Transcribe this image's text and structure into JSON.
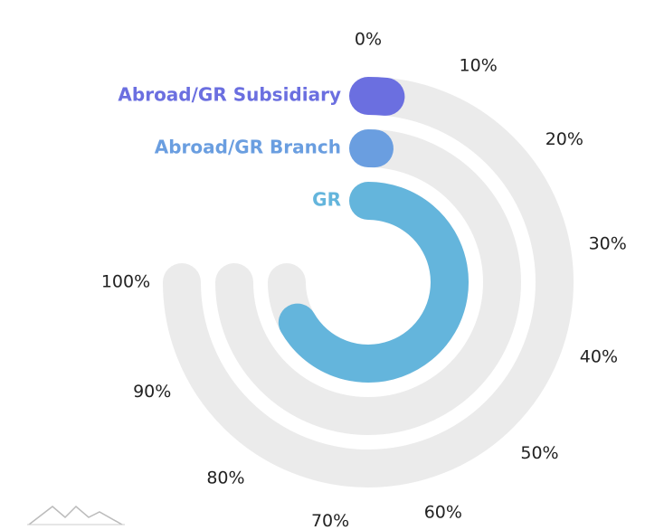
{
  "chart_data": {
    "type": "radialBar",
    "categories": [
      "Abroad/GR Subsidiary",
      "Abroad/GR Branch",
      "GR"
    ],
    "values": [
      2,
      1,
      89
    ],
    "colors": [
      "#6b6fe0",
      "#6a9ee0",
      "#64b5dc"
    ],
    "track_color": "#ebebeb",
    "ylim": [
      0,
      100
    ],
    "yticks": [
      {
        "value": 0,
        "label": "0%"
      },
      {
        "value": 10,
        "label": "10%"
      },
      {
        "value": 20,
        "label": "20%"
      },
      {
        "value": 30,
        "label": "30%"
      },
      {
        "value": 40,
        "label": "40%"
      },
      {
        "value": 50,
        "label": "50%"
      },
      {
        "value": 60,
        "label": "60%"
      },
      {
        "value": 70,
        "label": "70%"
      },
      {
        "value": 80,
        "label": "80%"
      },
      {
        "value": 90,
        "label": "90%"
      },
      {
        "value": 100,
        "label": "100%"
      }
    ]
  }
}
